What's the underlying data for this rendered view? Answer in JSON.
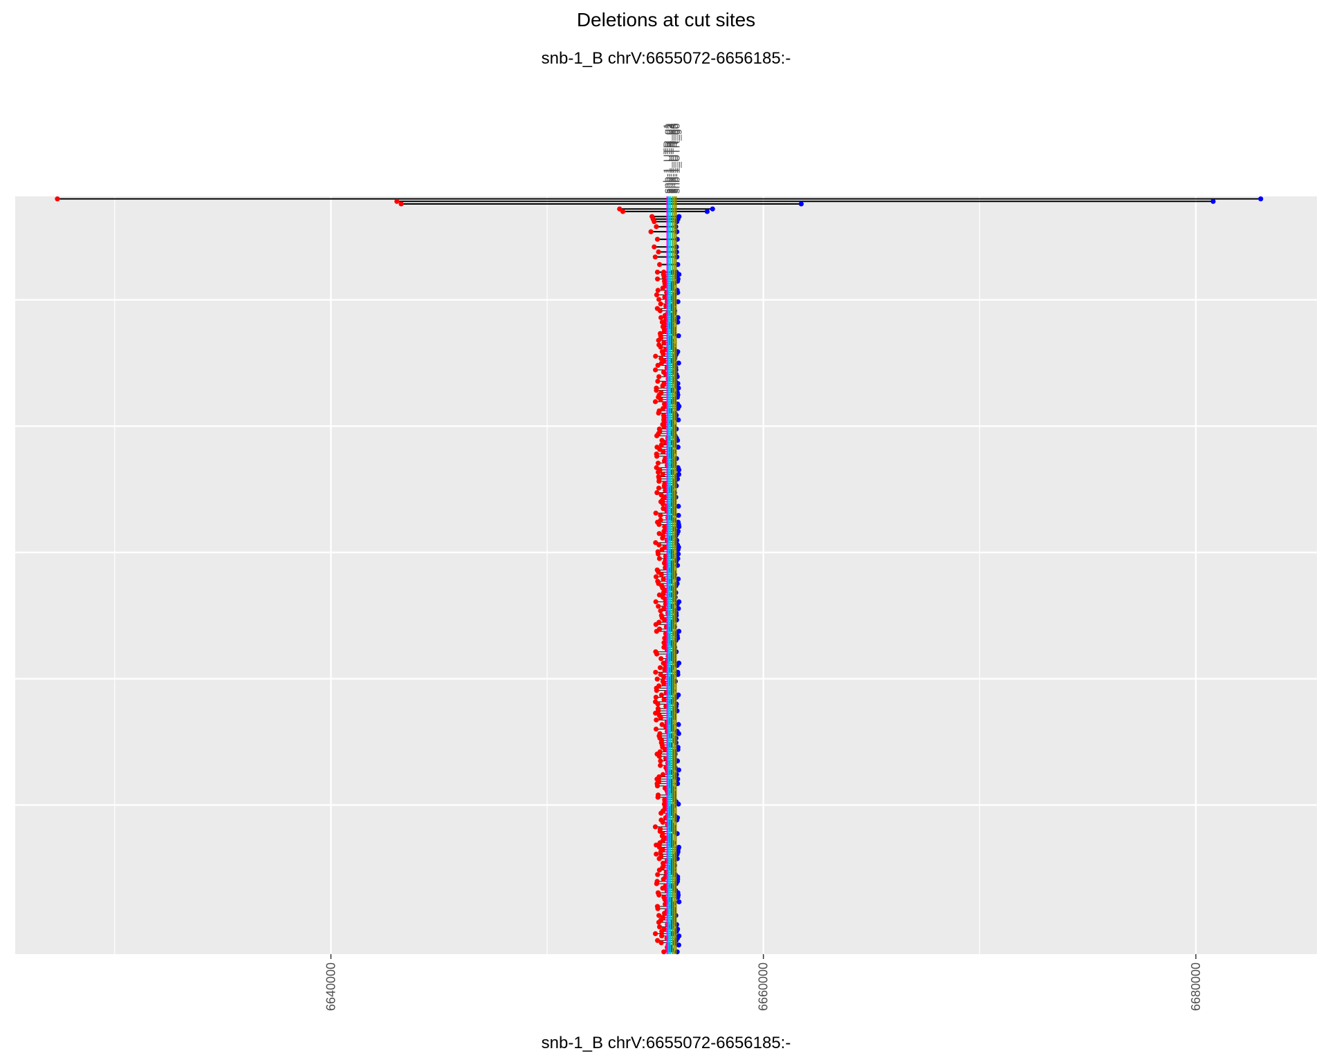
{
  "chart_data": {
    "type": "scatter",
    "title": "Deletions at cut sites",
    "subtitle": "snb-1_B chrV:6655072-6656185:-",
    "xlabel": "snb-1_B chrV:6655072-6656185:-",
    "ylabel": "",
    "xlim": [
      6625400,
      6685600
    ],
    "ylim": [
      0,
      300
    ],
    "x_ticks": [
      6640000,
      6660000,
      6680000
    ],
    "x_tick_labels": [
      "6640000",
      "6660000",
      "6680000"
    ],
    "grid": true,
    "legend": "none",
    "colors": {
      "panel": "#ebebeb",
      "grid": "#ffffff",
      "start_point": "#ff0000",
      "end_point": "#0000ff",
      "segment": "#000000",
      "cut_lines": [
        "#ff00ff",
        "#00bfff",
        "#00ced1",
        "#4daf4a",
        "#a0a000",
        "#7f7f00"
      ]
    },
    "cut_sites": [
      {
        "label": "snb-1_UTR_g1",
        "x": 6655550
      },
      {
        "label": "snb-1_UTR_g2",
        "x": 6655620
      },
      {
        "label": "snb-1_UTR_g3",
        "x": 6655700
      },
      {
        "label": "snb-1_UTR_g4",
        "x": 6655800
      },
      {
        "label": "snb-1_UTR_g5",
        "x": 6655880
      },
      {
        "label": "snb-1_UTR_g6",
        "x": 6655960
      }
    ],
    "deletions": [
      {
        "row": 1,
        "start": 6627350,
        "end": 6683000
      },
      {
        "row": 2,
        "start": 6643050,
        "end": 6680800
      },
      {
        "row": 3,
        "start": 6643250,
        "end": 6661750
      },
      {
        "row": 5,
        "start": 6653350,
        "end": 6657650
      },
      {
        "row": 6,
        "start": 6653500,
        "end": 6657400
      },
      {
        "row": 8,
        "start": 6654850,
        "end": 6656100
      },
      {
        "row": 9,
        "start": 6654900,
        "end": 6656050
      },
      {
        "row": 10,
        "start": 6654950,
        "end": 6656000
      },
      {
        "row": 12,
        "start": 6655050,
        "end": 6655950
      },
      {
        "row": 14,
        "start": 6654800,
        "end": 6656000
      },
      {
        "row": 17,
        "start": 6655100,
        "end": 6656020
      },
      {
        "row": 20,
        "start": 6654950,
        "end": 6655980
      },
      {
        "row": 22,
        "start": 6655150,
        "end": 6655990
      },
      {
        "row": 24,
        "start": 6655000,
        "end": 6656000
      },
      {
        "row": 27,
        "start": 6655200,
        "end": 6656040
      },
      {
        "row": 30,
        "start": 6655100,
        "end": 6655980
      }
    ],
    "points_range": {
      "start_x": [
        6655000,
        6655600
      ],
      "end_x": [
        6655700,
        6656100
      ],
      "rows": [
        30,
        300
      ]
    }
  }
}
